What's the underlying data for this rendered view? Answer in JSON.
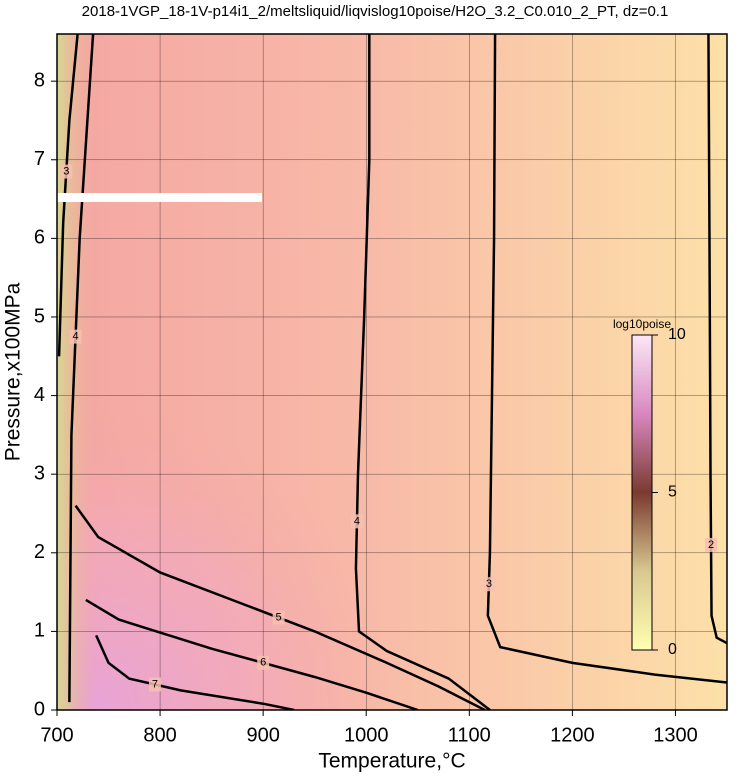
{
  "chart_data": {
    "type": "contour",
    "title": "2018-1VGP_18-1V-p14i1_2/meltsliquid/liqvislog10poise/H2O_3.2_C0.010_2_PT, dz=0.1",
    "x_label": "Temperature,°C",
    "y_label": "Pressure,x100MPa",
    "xlim": [
      700,
      1350
    ],
    "ylim": [
      0,
      8.6
    ],
    "xticks": [
      700,
      800,
      900,
      1000,
      1100,
      1200,
      1300
    ],
    "yticks": [
      0,
      1,
      2,
      3,
      4,
      5,
      6,
      7,
      8
    ],
    "grid": true,
    "contours": [
      {
        "level": 2,
        "x": [
          1332,
          1333,
          1334,
          1335,
          1340,
          1350
        ],
        "y": [
          8.6,
          6,
          3,
          1.2,
          0.92,
          0.85
        ]
      },
      {
        "level": 3,
        "x": [
          1125,
          1124,
          1122,
          1120,
          1118,
          1130,
          1200,
          1280,
          1350
        ],
        "y": [
          8.6,
          6,
          4,
          2,
          1.2,
          0.8,
          0.6,
          0.45,
          0.35
        ]
      },
      {
        "level": 4,
        "x": [
          1003,
          1003,
          998,
          992,
          990,
          993,
          1020,
          1080,
          1120
        ],
        "y": [
          8.6,
          7,
          5,
          3,
          1.8,
          1.0,
          0.75,
          0.4,
          0
        ]
      },
      {
        "level": 5,
        "x": [
          718,
          740,
          800,
          880,
          950,
          1020,
          1070,
          1115
        ],
        "y": [
          2.6,
          2.2,
          1.75,
          1.35,
          1.0,
          0.6,
          0.3,
          0
        ]
      },
      {
        "level": 6,
        "x": [
          728,
          760,
          850,
          950,
          1000,
          1050
        ],
        "y": [
          1.4,
          1.15,
          0.78,
          0.42,
          0.22,
          0
        ]
      },
      {
        "level": 7,
        "x": [
          738,
          750,
          770,
          820,
          900,
          930
        ],
        "y": [
          0.95,
          0.6,
          0.4,
          0.25,
          0.08,
          0
        ]
      },
      {
        "level": 4,
        "x": [
          712,
          714,
          722,
          735
        ],
        "y": [
          0.1,
          3.5,
          6,
          8.6
        ]
      },
      {
        "level": 3,
        "x": [
          702,
          706,
          712,
          720
        ],
        "y": [
          4.5,
          6.2,
          7.5,
          8.6
        ]
      }
    ],
    "colorbar": {
      "label": "log10poise",
      "lim": [
        0,
        10
      ],
      "ticks": [
        0,
        5,
        10
      ]
    }
  }
}
